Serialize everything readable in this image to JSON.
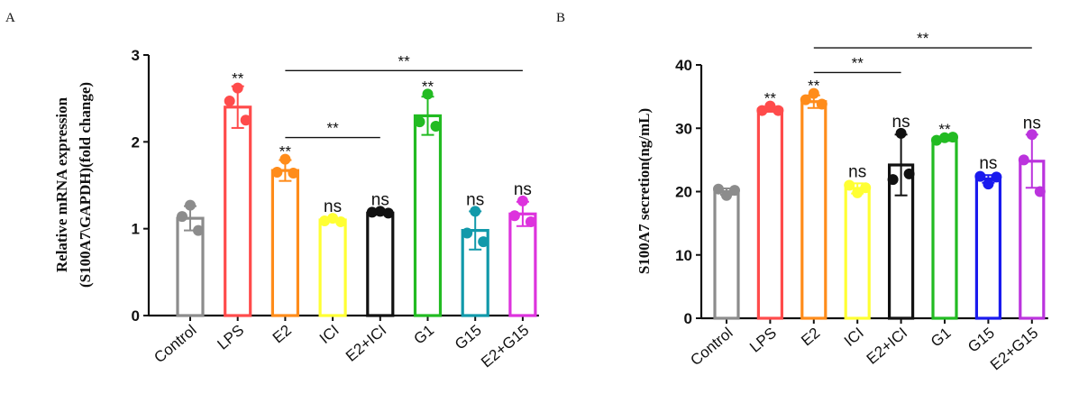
{
  "chart_data": [
    {
      "panel": "A",
      "type": "bar",
      "title": "",
      "xlabel": "",
      "ylabel_lines": [
        "Relative mRNA expression",
        "(S100A7\\GAPDH)(fold change)"
      ],
      "ylim": [
        0,
        3
      ],
      "yticks": [
        0,
        1,
        2,
        3
      ],
      "categories": [
        "Control",
        "LPS",
        "E2",
        "ICI",
        "E2+ICI",
        "G1",
        "G15",
        "E2+G15"
      ],
      "colors": [
        "#8c8c8c",
        "#ff4b4b",
        "#ff8c1a",
        "#ffff33",
        "#111111",
        "#22bb22",
        "#1199aa",
        "#dd33dd"
      ],
      "values": [
        1.12,
        2.4,
        1.67,
        1.1,
        1.18,
        2.3,
        0.98,
        1.17
      ],
      "errors": [
        0.14,
        0.24,
        0.12,
        0.02,
        0.02,
        0.22,
        0.22,
        0.14
      ],
      "points": [
        [
          1.27,
          1.14,
          0.98
        ],
        [
          2.62,
          2.47,
          2.25
        ],
        [
          1.8,
          1.65,
          1.64
        ],
        [
          1.12,
          1.09,
          1.08
        ],
        [
          1.2,
          1.19,
          1.18
        ],
        [
          2.55,
          2.23,
          2.18
        ],
        [
          1.2,
          0.95,
          0.85
        ],
        [
          1.32,
          1.15,
          1.08
        ]
      ],
      "sig_labels": [
        "",
        "**",
        "**",
        "ns",
        "ns",
        "**",
        "ns",
        "ns"
      ],
      "brackets": [
        {
          "from": 2,
          "to": 4,
          "y": 2.05,
          "label": "**"
        },
        {
          "from": 2,
          "to": 7,
          "y": 2.82,
          "label": "**"
        }
      ]
    },
    {
      "panel": "B",
      "type": "bar",
      "title": "",
      "xlabel": "",
      "ylabel_lines": [
        "S100A7 secretion(ng/mL)"
      ],
      "ylim": [
        0,
        40
      ],
      "yticks": [
        0,
        10,
        20,
        30,
        40
      ],
      "categories": [
        "Control",
        "LPS",
        "E2",
        "ICI",
        "E2+ICI",
        "G1",
        "G15",
        "E2+G15"
      ],
      "colors": [
        "#8c8c8c",
        "#ff4b4b",
        "#ff8c1a",
        "#ffff33",
        "#111111",
        "#22bb22",
        "#1a1aee",
        "#bb33dd"
      ],
      "values": [
        20.0,
        33.0,
        34.2,
        20.5,
        24.2,
        28.3,
        22.0,
        24.8
      ],
      "errors": [
        0.5,
        0.4,
        1.0,
        0.8,
        4.8,
        0.3,
        0.6,
        4.2
      ],
      "points": [
        [
          19.4,
          20.4,
          20.2
        ],
        [
          33.5,
          32.8,
          32.8
        ],
        [
          35.5,
          34.5,
          33.8
        ],
        [
          19.8,
          21.0,
          20.6
        ],
        [
          29.2,
          21.9,
          22.8
        ],
        [
          28.5,
          28.1,
          28.6
        ],
        [
          21.2,
          22.4,
          22.3
        ],
        [
          29.0,
          25.0,
          20.0
        ]
      ],
      "sig_labels": [
        "",
        "**",
        "**",
        "ns",
        "ns",
        "**",
        "ns",
        "ns"
      ],
      "brackets": [
        {
          "from": 2,
          "to": 4,
          "y": 38.8,
          "label": "**"
        },
        {
          "from": 2,
          "to": 7,
          "y": 42.7,
          "label": "**"
        }
      ]
    }
  ]
}
